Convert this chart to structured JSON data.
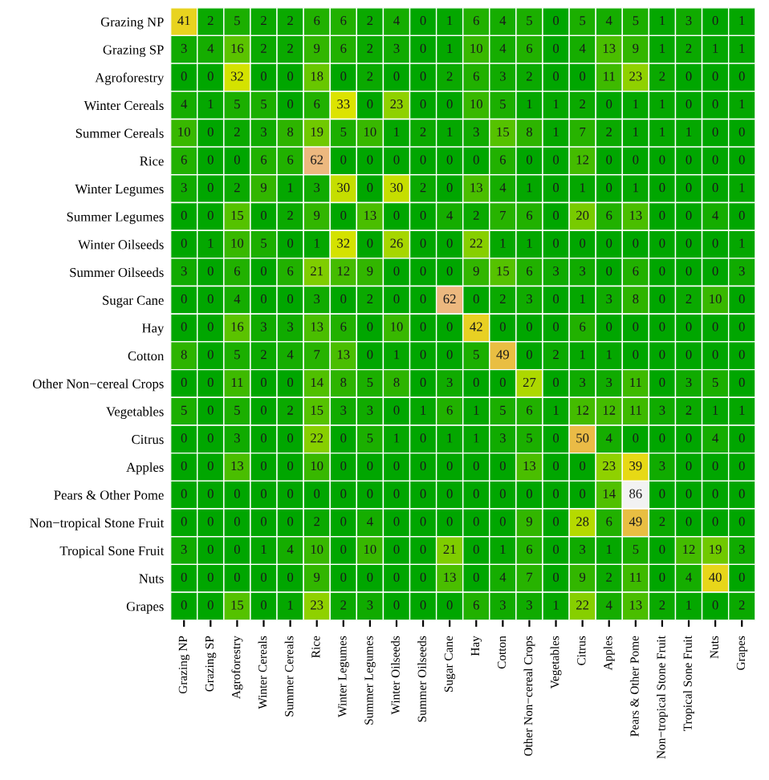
{
  "chart_data": {
    "type": "heatmap",
    "data_labels": true,
    "categories": [
      "Grazing NP",
      "Grazing SP",
      "Agroforestry",
      "Winter Cereals",
      "Summer Cereals",
      "Rice",
      "Winter Legumes",
      "Summer Legumes",
      "Winter Oilseeds",
      "Summer Oilseeds",
      "Sugar Cane",
      "Hay",
      "Cotton",
      "Other Non−cereal Crops",
      "Vegetables",
      "Citrus",
      "Apples",
      "Pears & Other Pome",
      "Non−tropical Stone Fruit",
      "Tropical Sone Fruit",
      "Nuts",
      "Grapes"
    ],
    "y_categories": [
      "Grazing NP",
      "Grazing SP",
      "Agroforestry",
      "Winter Cereals",
      "Summer Cereals",
      "Rice",
      "Winter Legumes",
      "Summer Legumes",
      "Winter Oilseeds",
      "Summer Oilseeds",
      "Sugar Cane",
      "Hay",
      "Cotton",
      "Other Non−cereal Crops",
      "Vegetables",
      "Citrus",
      "Apples",
      "Pears & Other Pome",
      "Non−tropical Stone Fruit",
      "Tropical Sone Fruit",
      "Nuts",
      "Grapes"
    ],
    "cells": [
      [
        41,
        2,
        5,
        2,
        2,
        6,
        6,
        2,
        4,
        0,
        1,
        6,
        4,
        5,
        0,
        5,
        4,
        5,
        1,
        3,
        0,
        1
      ],
      [
        3,
        4,
        16,
        2,
        2,
        9,
        6,
        2,
        3,
        0,
        1,
        10,
        4,
        6,
        0,
        4,
        13,
        9,
        1,
        2,
        1,
        1
      ],
      [
        0,
        0,
        32,
        0,
        0,
        18,
        0,
        2,
        0,
        0,
        2,
        6,
        3,
        2,
        0,
        0,
        11,
        23,
        2,
        0,
        0,
        0
      ],
      [
        4,
        1,
        5,
        5,
        0,
        6,
        33,
        0,
        23,
        0,
        0,
        10,
        5,
        1,
        1,
        2,
        0,
        1,
        1,
        0,
        0,
        1
      ],
      [
        10,
        0,
        2,
        3,
        8,
        19,
        5,
        10,
        1,
        2,
        1,
        3,
        15,
        8,
        1,
        7,
        2,
        1,
        1,
        1,
        0,
        0
      ],
      [
        6,
        0,
        0,
        6,
        6,
        62,
        0,
        0,
        0,
        0,
        0,
        0,
        6,
        0,
        0,
        12,
        0,
        0,
        0,
        0,
        0,
        0
      ],
      [
        3,
        0,
        2,
        9,
        1,
        3,
        30,
        0,
        30,
        2,
        0,
        13,
        4,
        1,
        0,
        1,
        0,
        1,
        0,
        0,
        0,
        1
      ],
      [
        0,
        0,
        15,
        0,
        2,
        9,
        0,
        13,
        0,
        0,
        4,
        2,
        7,
        6,
        0,
        20,
        6,
        13,
        0,
        0,
        4,
        0
      ],
      [
        0,
        1,
        10,
        5,
        0,
        1,
        32,
        0,
        26,
        0,
        0,
        22,
        1,
        1,
        0,
        0,
        0,
        0,
        0,
        0,
        0,
        1
      ],
      [
        3,
        0,
        6,
        0,
        6,
        21,
        12,
        9,
        0,
        0,
        0,
        9,
        15,
        6,
        3,
        3,
        0,
        6,
        0,
        0,
        0,
        3
      ],
      [
        0,
        0,
        4,
        0,
        0,
        3,
        0,
        2,
        0,
        0,
        62,
        0,
        2,
        3,
        0,
        1,
        3,
        8,
        0,
        2,
        10,
        0
      ],
      [
        0,
        0,
        16,
        3,
        3,
        13,
        6,
        0,
        10,
        0,
        0,
        42,
        0,
        0,
        0,
        6,
        0,
        0,
        0,
        0,
        0,
        0
      ],
      [
        8,
        0,
        5,
        2,
        4,
        7,
        13,
        0,
        1,
        0,
        0,
        5,
        49,
        0,
        2,
        1,
        1,
        0,
        0,
        0,
        0,
        0
      ],
      [
        0,
        0,
        11,
        0,
        0,
        14,
        8,
        5,
        8,
        0,
        3,
        0,
        0,
        27,
        0,
        3,
        3,
        11,
        0,
        3,
        5,
        0
      ],
      [
        5,
        0,
        5,
        0,
        2,
        15,
        3,
        3,
        0,
        1,
        6,
        1,
        5,
        6,
        1,
        12,
        12,
        11,
        3,
        2,
        1,
        1
      ],
      [
        0,
        0,
        3,
        0,
        0,
        22,
        0,
        5,
        1,
        0,
        1,
        1,
        3,
        5,
        0,
        50,
        4,
        0,
        0,
        0,
        4,
        0
      ],
      [
        0,
        0,
        13,
        0,
        0,
        10,
        0,
        0,
        0,
        0,
        0,
        0,
        0,
        13,
        0,
        0,
        23,
        39,
        3,
        0,
        0,
        0
      ],
      [
        0,
        0,
        0,
        0,
        0,
        0,
        0,
        0,
        0,
        0,
        0,
        0,
        0,
        0,
        0,
        0,
        14,
        86,
        0,
        0,
        0,
        0
      ],
      [
        0,
        0,
        0,
        0,
        0,
        2,
        0,
        4,
        0,
        0,
        0,
        0,
        0,
        9,
        0,
        28,
        6,
        49,
        2,
        0,
        0,
        0
      ],
      [
        3,
        0,
        0,
        1,
        4,
        10,
        0,
        10,
        0,
        0,
        21,
        0,
        1,
        6,
        0,
        3,
        1,
        5,
        0,
        12,
        19,
        3
      ],
      [
        0,
        0,
        0,
        0,
        0,
        9,
        0,
        0,
        0,
        0,
        13,
        0,
        4,
        7,
        0,
        9,
        2,
        11,
        0,
        4,
        40,
        0
      ],
      [
        0,
        0,
        15,
        0,
        1,
        23,
        2,
        3,
        0,
        0,
        0,
        6,
        3,
        3,
        1,
        22,
        4,
        13,
        2,
        1,
        0,
        2
      ]
    ]
  }
}
